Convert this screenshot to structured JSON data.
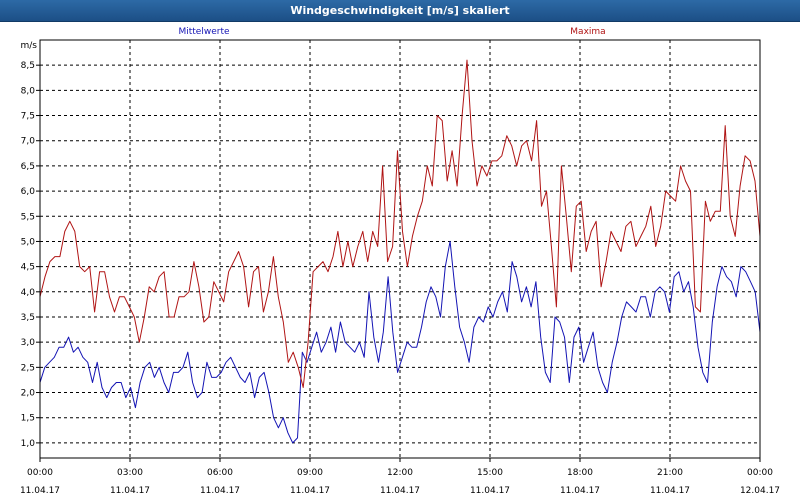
{
  "window": {
    "title": "Windgeschwindigkeit [m/s] skaliert"
  },
  "colors": {
    "mean": "#1414b4",
    "max": "#b01414",
    "grid": "#000000",
    "text": "#000000"
  },
  "chart_data": {
    "type": "line",
    "title": "Windgeschwindigkeit [m/s] skaliert",
    "ylabel": "m/s",
    "xlabel": "",
    "ylim": [
      0.7,
      9.0
    ],
    "y_ticks": [
      1.0,
      1.5,
      2.0,
      2.5,
      3.0,
      3.5,
      4.0,
      4.5,
      5.0,
      5.5,
      6.0,
      6.5,
      7.0,
      7.5,
      8.0,
      8.5
    ],
    "y_tick_labels": [
      "1,0",
      "1,5",
      "2,0",
      "2,5",
      "3,0",
      "3,5",
      "4,0",
      "4,5",
      "5,0",
      "5,5",
      "6,0",
      "6,5",
      "7,0",
      "7,5",
      "8,0",
      "8,5"
    ],
    "xlim": [
      0,
      24
    ],
    "x_ticks": [
      0,
      3,
      6,
      9,
      12,
      15,
      18,
      21,
      24
    ],
    "x_tick_labels": [
      {
        "time": "00:00",
        "date": "11.04.17"
      },
      {
        "time": "03:00",
        "date": "11.04.17"
      },
      {
        "time": "06:00",
        "date": "11.04.17"
      },
      {
        "time": "09:00",
        "date": "11.04.17"
      },
      {
        "time": "12:00",
        "date": "11.04.17"
      },
      {
        "time": "15:00",
        "date": "11.04.17"
      },
      {
        "time": "18:00",
        "date": "11.04.17"
      },
      {
        "time": "21:00",
        "date": "11.04.17"
      },
      {
        "time": "00:00",
        "date": "12.04.17"
      }
    ],
    "grid": true,
    "legend": "top",
    "series": [
      {
        "name": "Mittelwerte",
        "color": "#1414b4",
        "values": [
          2.2,
          2.5,
          2.6,
          2.7,
          2.9,
          2.9,
          3.1,
          2.8,
          2.9,
          2.7,
          2.6,
          2.2,
          2.6,
          2.1,
          1.9,
          2.1,
          2.2,
          2.2,
          1.9,
          2.1,
          1.7,
          2.2,
          2.5,
          2.6,
          2.3,
          2.5,
          2.2,
          2.0,
          2.4,
          2.4,
          2.5,
          2.8,
          2.2,
          1.9,
          2.0,
          2.6,
          2.3,
          2.3,
          2.4,
          2.6,
          2.7,
          2.5,
          2.3,
          2.2,
          2.4,
          1.9,
          2.3,
          2.4,
          2.0,
          1.5,
          1.3,
          1.5,
          1.2,
          1.0,
          1.1,
          2.8,
          2.6,
          2.9,
          3.2,
          2.8,
          3.0,
          3.3,
          2.8,
          3.4,
          3.0,
          2.9,
          2.8,
          3.0,
          2.7,
          4.0,
          3.1,
          2.6,
          3.2,
          4.3,
          3.2,
          2.4,
          2.7,
          3.0,
          2.9,
          2.9,
          3.3,
          3.8,
          4.1,
          3.9,
          3.5,
          4.5,
          5.0,
          4.1,
          3.3,
          3.0,
          2.6,
          3.3,
          3.5,
          3.4,
          3.7,
          3.5,
          3.8,
          4.0,
          3.6,
          4.6,
          4.3,
          3.8,
          4.1,
          3.7,
          4.2,
          3.1,
          2.4,
          2.2,
          3.5,
          3.4,
          3.1,
          2.2,
          3.1,
          3.3,
          2.6,
          2.9,
          3.2,
          2.5,
          2.2,
          2.0,
          2.6,
          3.0,
          3.5,
          3.8,
          3.7,
          3.6,
          3.9,
          3.9,
          3.5,
          4.0,
          4.1,
          4.0,
          3.6,
          4.3,
          4.4,
          4.0,
          4.2,
          3.7,
          2.9,
          2.4,
          2.2,
          3.4,
          4.1,
          4.5,
          4.3,
          4.2,
          3.9,
          4.5,
          4.4,
          4.2,
          4.0,
          3.2
        ]
      },
      {
        "name": "Maxima",
        "color": "#b01414",
        "values": [
          3.9,
          4.3,
          4.6,
          4.7,
          4.7,
          5.2,
          5.4,
          5.2,
          4.5,
          4.4,
          4.5,
          3.6,
          4.4,
          4.4,
          3.9,
          3.6,
          3.9,
          3.9,
          3.7,
          3.5,
          3.0,
          3.5,
          4.1,
          4.0,
          4.3,
          4.4,
          3.5,
          3.5,
          3.9,
          3.9,
          4.0,
          4.6,
          4.1,
          3.4,
          3.5,
          4.2,
          4.0,
          3.8,
          4.4,
          4.6,
          4.8,
          4.5,
          3.7,
          4.4,
          4.5,
          3.6,
          4.0,
          4.7,
          3.9,
          3.4,
          2.6,
          2.8,
          2.5,
          2.1,
          3.0,
          4.4,
          4.5,
          4.6,
          4.4,
          4.7,
          5.2,
          4.5,
          5.0,
          4.5,
          4.9,
          5.2,
          4.6,
          5.2,
          4.9,
          6.5,
          4.6,
          4.9,
          6.8,
          5.2,
          4.5,
          5.1,
          5.5,
          5.8,
          6.5,
          6.1,
          7.5,
          7.4,
          6.2,
          6.8,
          6.1,
          7.5,
          8.6,
          7.0,
          6.1,
          6.5,
          6.3,
          6.6,
          6.6,
          6.7,
          7.1,
          6.9,
          6.5,
          6.9,
          7.0,
          6.6,
          7.4,
          5.7,
          6.0,
          4.9,
          3.7,
          6.5,
          5.5,
          4.4,
          5.7,
          5.8,
          4.8,
          5.2,
          5.4,
          4.1,
          4.6,
          5.2,
          5.0,
          4.8,
          5.3,
          5.4,
          4.9,
          5.1,
          5.3,
          5.7,
          4.9,
          5.3,
          6.0,
          5.9,
          5.8,
          6.5,
          6.2,
          6.0,
          3.7,
          3.6,
          5.8,
          5.4,
          5.6,
          5.6,
          7.3,
          5.5,
          5.1,
          6.1,
          6.7,
          6.6,
          6.2,
          5.1
        ]
      }
    ]
  }
}
